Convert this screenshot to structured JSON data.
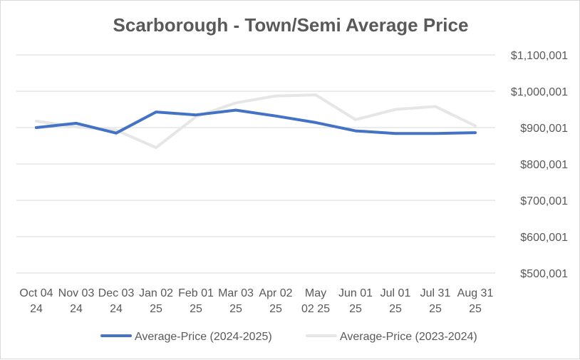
{
  "chart_data": {
    "type": "line",
    "title": "Scarborough - Town/Semi Average Price",
    "xlabel": "",
    "ylabel": "",
    "categories": [
      [
        "Oct 04",
        "24"
      ],
      [
        "Nov 03",
        "24"
      ],
      [
        "Dec 03",
        "24"
      ],
      [
        "Jan 02",
        "25"
      ],
      [
        "Feb 01",
        "25"
      ],
      [
        "Mar 03",
        "25"
      ],
      [
        "Apr 02",
        "25"
      ],
      [
        "May",
        "02 25"
      ],
      [
        "Jun 01",
        "25"
      ],
      [
        "Jul 01",
        "25"
      ],
      [
        "Jul 31",
        "25"
      ],
      [
        "Aug 31",
        "25"
      ]
    ],
    "ylim": [
      500001,
      1100001
    ],
    "yticks": [
      500001,
      600001,
      700001,
      800001,
      900001,
      1000001,
      1100001
    ],
    "ytick_labels": [
      "$500,001",
      "$600,001",
      "$700,001",
      "$800,001",
      "$900,001",
      "$1,000,001",
      "$1,100,001"
    ],
    "y_axis_side": "right",
    "grid": true,
    "legend_position": "bottom",
    "series": [
      {
        "name": "Average-Price (2024-2025)",
        "color": "#4472c4",
        "values": [
          900000,
          912000,
          885000,
          943000,
          935000,
          948000,
          932000,
          914000,
          891000,
          884000,
          884000,
          886000
        ]
      },
      {
        "name": "Average-Price (2023-2024)",
        "color": "#e7e6e6",
        "values": [
          918000,
          902000,
          893000,
          845000,
          930000,
          968000,
          987000,
          990000,
          922000,
          950000,
          958000,
          905000
        ]
      }
    ]
  }
}
